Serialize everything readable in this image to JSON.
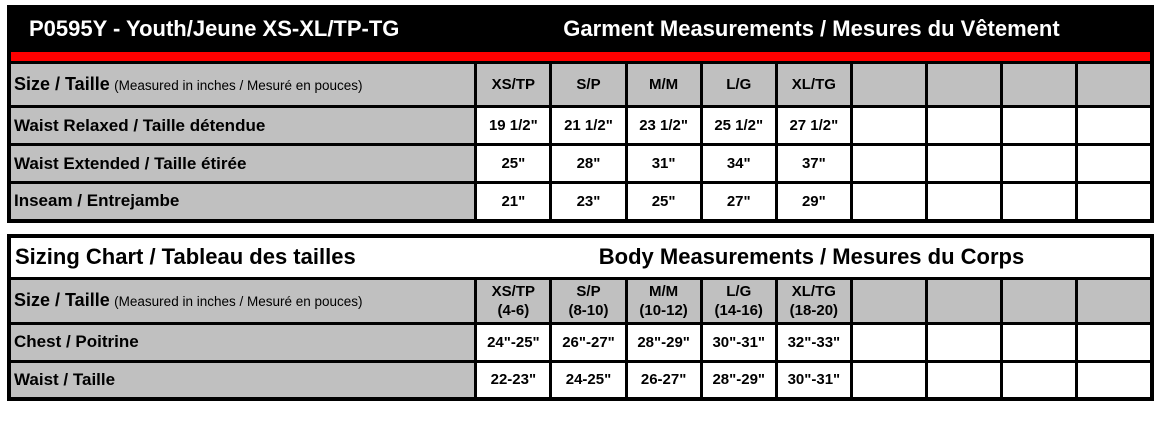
{
  "colors": {
    "accent_red": "#ff0000",
    "header_gray": "#c0c0c0",
    "title_bar_black": "#000000",
    "cell_white": "#ffffff"
  },
  "garment": {
    "title_left": "P0595Y - Youth/Jeune XS-XL/TP-TG",
    "title_right": "Garment Measurements / Mesures du Vêtement",
    "size_label": "Size / Taille",
    "size_note": "(Measured in inches / Mesuré en pouces)",
    "columns": [
      "XS/TP",
      "S/P",
      "M/M",
      "L/G",
      "XL/TG",
      "",
      "",
      "",
      ""
    ],
    "rows": [
      {
        "label": "Waist Relaxed / Taille détendue",
        "values": [
          "19 1/2\"",
          "21 1/2\"",
          "23 1/2\"",
          "25 1/2\"",
          "27 1/2\"",
          "",
          "",
          "",
          ""
        ]
      },
      {
        "label": "Waist Extended / Taille étirée",
        "values": [
          "25\"",
          "28\"",
          "31\"",
          "34\"",
          "37\"",
          "",
          "",
          "",
          ""
        ]
      },
      {
        "label": "Inseam / Entrejambe",
        "values": [
          "21\"",
          "23\"",
          "25\"",
          "27\"",
          "29\"",
          "",
          "",
          "",
          ""
        ]
      }
    ]
  },
  "sizing": {
    "title_left": "Sizing Chart / Tableau des tailles",
    "title_right": "Body Measurements / Mesures du Corps",
    "size_label": "Size / Taille",
    "size_note": "(Measured in inches / Mesuré en pouces)",
    "columns": [
      {
        "size": "XS/TP",
        "range": "(4-6)"
      },
      {
        "size": "S/P",
        "range": "(8-10)"
      },
      {
        "size": "M/M",
        "range": "(10-12)"
      },
      {
        "size": "L/G",
        "range": "(14-16)"
      },
      {
        "size": "XL/TG",
        "range": "(18-20)"
      },
      {
        "size": "",
        "range": ""
      },
      {
        "size": "",
        "range": ""
      },
      {
        "size": "",
        "range": ""
      },
      {
        "size": "",
        "range": ""
      }
    ],
    "rows": [
      {
        "label": "Chest / Poitrine",
        "values": [
          "24\"-25\"",
          "26\"-27\"",
          "28\"-29\"",
          "30\"-31\"",
          "32\"-33\"",
          "",
          "",
          "",
          ""
        ]
      },
      {
        "label": "Waist / Taille",
        "values": [
          "22-23\"",
          "24-25\"",
          "26-27\"",
          "28\"-29\"",
          "30\"-31\"",
          "",
          "",
          "",
          ""
        ]
      }
    ]
  }
}
